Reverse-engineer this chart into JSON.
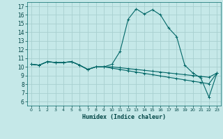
{
  "xlabel": "Humidex (Indice chaleur)",
  "background_color": "#c5e8e8",
  "grid_color": "#a8d0d0",
  "line_color": "#006666",
  "xlim": [
    -0.5,
    23.5
  ],
  "ylim": [
    5.5,
    17.5
  ],
  "xticks": [
    0,
    1,
    2,
    3,
    4,
    5,
    6,
    7,
    8,
    9,
    10,
    11,
    12,
    13,
    14,
    15,
    16,
    17,
    18,
    19,
    20,
    21,
    22,
    23
  ],
  "yticks": [
    6,
    7,
    8,
    9,
    10,
    11,
    12,
    13,
    14,
    15,
    16,
    17
  ],
  "series": [
    [
      10.3,
      10.2,
      10.6,
      10.5,
      10.5,
      10.6,
      10.2,
      9.7,
      10.0,
      10.0,
      10.3,
      11.8,
      15.5,
      16.7,
      16.1,
      16.6,
      16.0,
      14.5,
      13.5,
      10.2,
      9.3,
      8.7,
      6.5,
      9.3
    ],
    [
      10.3,
      10.2,
      10.6,
      10.5,
      10.5,
      10.6,
      10.2,
      9.7,
      10.0,
      10.0,
      10.0,
      9.9,
      9.8,
      9.7,
      9.6,
      9.5,
      9.4,
      9.3,
      9.2,
      9.1,
      9.0,
      8.9,
      8.8,
      9.3
    ],
    [
      10.3,
      10.2,
      10.6,
      10.5,
      10.5,
      10.6,
      10.2,
      9.7,
      10.0,
      10.0,
      9.85,
      9.7,
      9.55,
      9.4,
      9.25,
      9.1,
      8.95,
      8.8,
      8.65,
      8.5,
      8.35,
      8.2,
      8.05,
      9.3
    ]
  ]
}
